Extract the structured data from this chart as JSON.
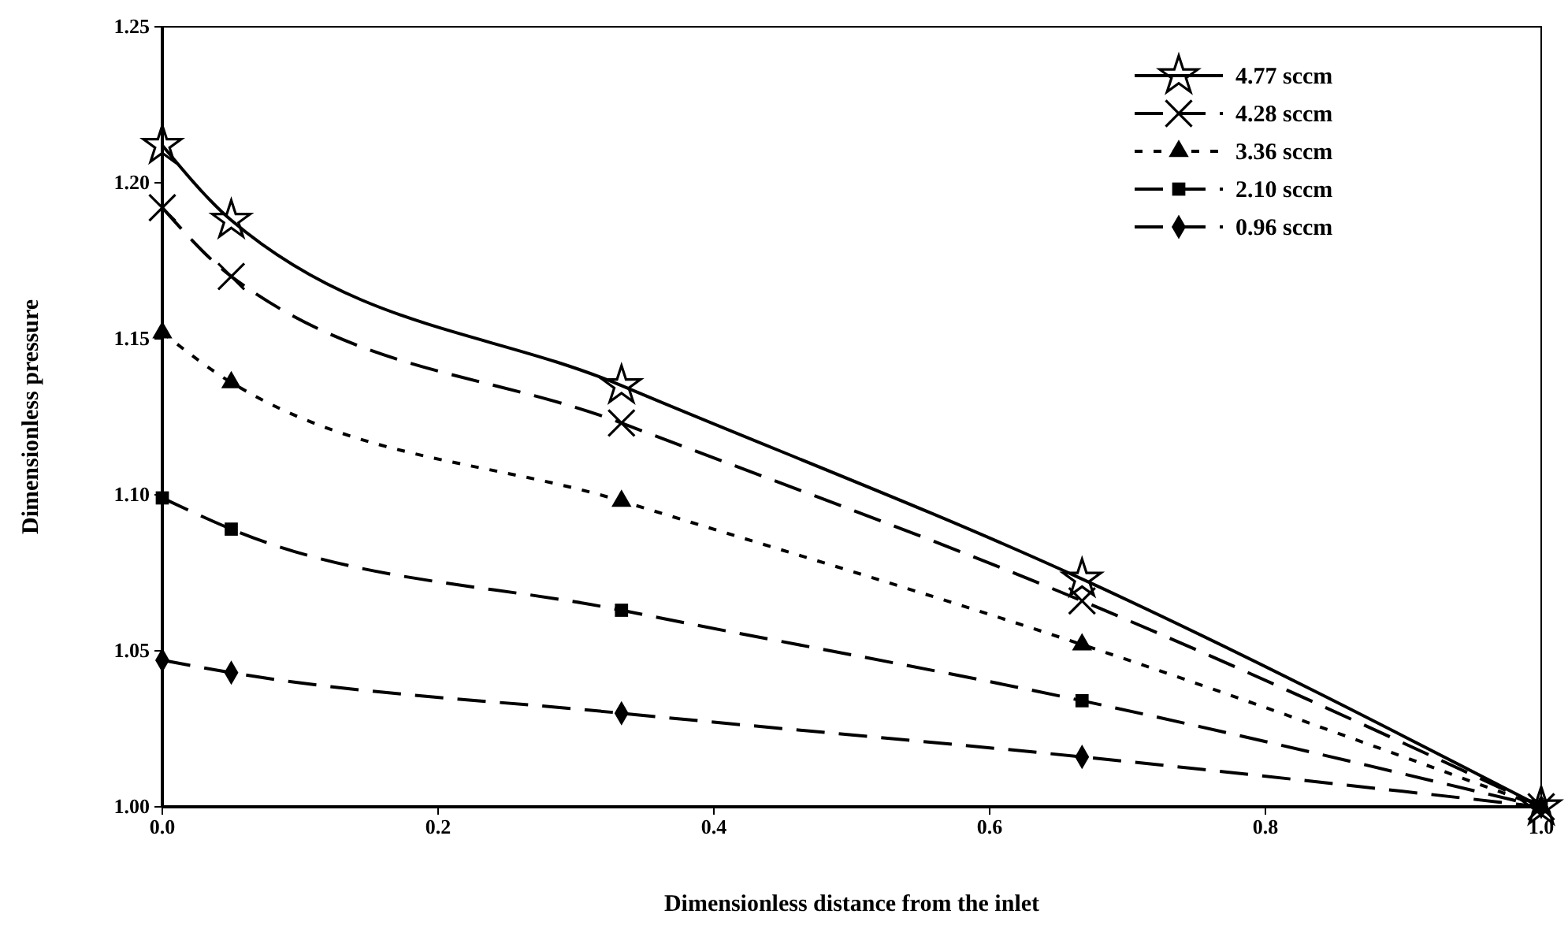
{
  "chart_data": {
    "type": "line",
    "xlabel": "Dimensionless distance from the inlet",
    "ylabel": "Dimensionless pressure",
    "x": [
      0,
      0.05,
      0.333,
      0.667,
      1.0
    ],
    "series": [
      {
        "name": "4.77 sccm",
        "color": "#000000",
        "marker": "star",
        "line_style": "solid",
        "values": [
          1.212,
          1.188,
          1.135,
          1.073,
          1.0
        ]
      },
      {
        "name": "4.28 sccm",
        "color": "#000000",
        "marker": "cross",
        "line_style": "dashed",
        "values": [
          1.192,
          1.17,
          1.123,
          1.066,
          1.0
        ]
      },
      {
        "name": "3.36 sccm",
        "color": "#000000",
        "marker": "triangle",
        "line_style": "dotted",
        "values": [
          1.152,
          1.136,
          1.098,
          1.052,
          1.0
        ]
      },
      {
        "name": "2.10 sccm",
        "color": "#000000",
        "marker": "square",
        "line_style": "dashed",
        "values": [
          1.099,
          1.089,
          1.063,
          1.034,
          1.0
        ]
      },
      {
        "name": "0.96 sccm",
        "color": "#000000",
        "marker": "diamond",
        "line_style": "dashed",
        "values": [
          1.047,
          1.043,
          1.03,
          1.016,
          1.0
        ]
      }
    ],
    "xlim": [
      0,
      1.0
    ],
    "xticks": [
      {
        "value": 0,
        "label": "0.0"
      },
      {
        "value": 0.2,
        "label": "0.2"
      },
      {
        "value": 0.4,
        "label": "0.4"
      },
      {
        "value": 0.6,
        "label": "0.6"
      },
      {
        "value": 0.8,
        "label": "0.8"
      },
      {
        "value": 1.0,
        "label": "1.0"
      }
    ],
    "ylim": [
      1.0,
      1.25
    ],
    "yticks": [
      {
        "value": 1.0,
        "label": "1.00"
      },
      {
        "value": 1.05,
        "label": "1.05"
      },
      {
        "value": 1.1,
        "label": "1.10"
      },
      {
        "value": 1.15,
        "label": "1.15"
      },
      {
        "value": 1.2,
        "label": "1.20"
      },
      {
        "value": 1.25,
        "label": "1.25"
      }
    ],
    "grid": false,
    "legend": "top right"
  }
}
